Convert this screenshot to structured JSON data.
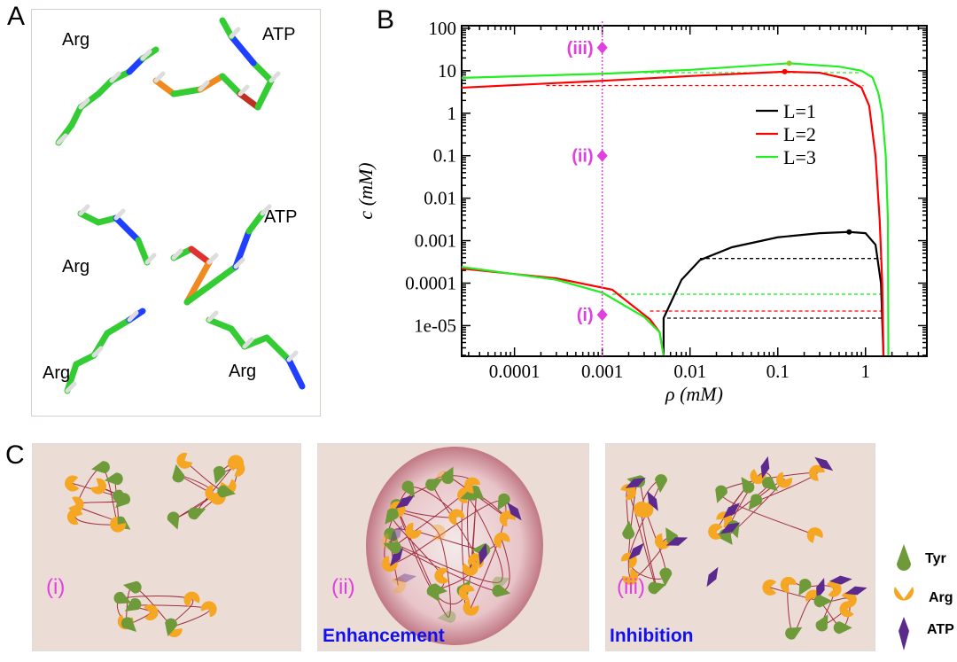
{
  "panels": {
    "a": "A",
    "b": "B",
    "c": "C"
  },
  "panel_a": {
    "labels": [
      "Arg",
      "ATP",
      "ATP",
      "Arg",
      "Arg",
      "Arg"
    ]
  },
  "panel_c": {
    "states": [
      "(i)",
      "(ii)",
      "(iii)"
    ],
    "enhancement": "Enhancement",
    "inhibition": "Inhibition",
    "legend": {
      "tyr": "Tyr",
      "arg": "Arg",
      "atp": "ATP"
    },
    "colors": {
      "tyr": "#6f9a3a",
      "arg": "#f5a623",
      "atp": "#5b2a8c",
      "chain": "#a03040",
      "background": "#ecdcd6"
    }
  },
  "chart_data": {
    "type": "line",
    "xlabel": "ρ (mM)",
    "ylabel": "c (mM)",
    "xscale": "log",
    "yscale": "log",
    "xlim": [
      2.5e-05,
      5
    ],
    "ylim": [
      1.9e-06,
      115
    ],
    "xticks": [
      "0.0001",
      "0.001",
      "0.01",
      "0.1",
      "1"
    ],
    "yticks": [
      "100",
      "10",
      "1",
      "0.1",
      "0.01",
      "0.001",
      "0.0001",
      "1e-05"
    ],
    "legend_position": "right",
    "series": [
      {
        "name": "L=1",
        "color": "#000000",
        "segments": [
          [
            [
              0.005,
              2e-06
            ],
            [
              0.005,
              1.5e-05
            ],
            [
              0.008,
              0.00012
            ],
            [
              0.013,
              0.00035
            ],
            [
              0.03,
              0.0007
            ],
            [
              0.1,
              0.0012
            ],
            [
              0.3,
              0.0015
            ],
            [
              0.65,
              0.0016
            ],
            [
              1.0,
              0.0015
            ],
            [
              1.3,
              0.0008
            ],
            [
              1.5,
              0.0001
            ],
            [
              1.6,
              2e-06
            ]
          ]
        ],
        "marker": [
          0.65,
          0.0016
        ],
        "tie_lines": [
          {
            "c": 0.00038,
            "x": [
              0.013,
              1.5
            ]
          },
          {
            "c": 1.5e-05,
            "x": [
              0.0055,
              1.55
            ]
          }
        ]
      },
      {
        "name": "L=2",
        "color": "#ff0000",
        "segments": [
          [
            [
              2.5e-05,
              4
            ],
            [
              0.001,
              5.8
            ],
            [
              0.01,
              7.5
            ],
            [
              0.12,
              9.5
            ],
            [
              0.3,
              9
            ],
            [
              0.6,
              6.5
            ],
            [
              0.9,
              4
            ],
            [
              1.1,
              1.5
            ],
            [
              1.3,
              0.1
            ],
            [
              1.45,
              0.003
            ],
            [
              1.55,
              0.0001
            ],
            [
              1.6,
              2e-06
            ]
          ],
          [
            [
              2.5e-05,
              0.00022
            ],
            [
              0.0003,
              0.00013
            ],
            [
              0.0013,
              7e-05
            ],
            [
              0.0035,
              1.4e-05
            ],
            [
              0.0045,
              7e-06
            ],
            [
              0.005,
              2e-06
            ]
          ]
        ],
        "marker": [
          0.12,
          9.5
        ],
        "tie_lines": [
          {
            "c": 4.5,
            "x": [
              0.00023,
              0.95
            ]
          },
          {
            "c": 2.2e-05,
            "x": [
              0.0035,
              1.55
            ]
          }
        ]
      },
      {
        "name": "L=3",
        "color": "#22ee22",
        "segments": [
          [
            [
              2.5e-05,
              6.8
            ],
            [
              0.001,
              8.5
            ],
            [
              0.01,
              10.5
            ],
            [
              0.135,
              15
            ],
            [
              0.5,
              12.5
            ],
            [
              0.9,
              10
            ],
            [
              1.2,
              7
            ],
            [
              1.4,
              3
            ],
            [
              1.55,
              1
            ],
            [
              1.7,
              0.1
            ],
            [
              1.8,
              0.003
            ],
            [
              1.82,
              2e-06
            ]
          ],
          [
            [
              2.5e-05,
              0.00024
            ],
            [
              0.0003,
              0.00012
            ],
            [
              0.001,
              6e-05
            ],
            [
              0.003,
              1.6e-05
            ],
            [
              0.0045,
              7e-06
            ],
            [
              0.005,
              2e-06
            ]
          ]
        ],
        "marker": [
          0.135,
          15
        ],
        "tie_lines": [
          {
            "c": 9,
            "x": [
              0.003,
              0.9
            ]
          },
          {
            "c": 5.5e-05,
            "x": [
              0.0013,
              1.6
            ]
          }
        ]
      }
    ],
    "annotations": {
      "vline_x": 0.001,
      "color": "#e040e0",
      "points": [
        {
          "label": "(iii)",
          "c": 35
        },
        {
          "label": "(ii)",
          "c": 0.1
        },
        {
          "label": "(i)",
          "c": 1.8e-05
        }
      ]
    }
  }
}
